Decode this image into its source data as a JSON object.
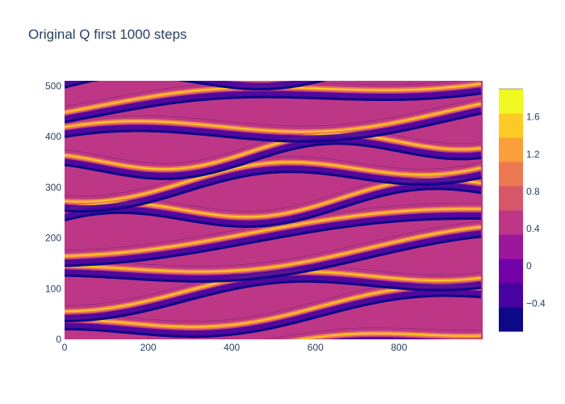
{
  "chart_data": {
    "type": "heatmap",
    "subtype": "contour",
    "title": "Original Q first 1000 steps",
    "xlabel": "",
    "ylabel": "",
    "xlim": [
      0,
      1000
    ],
    "ylim": [
      0,
      510
    ],
    "x_ticks": [
      0,
      200,
      400,
      600,
      800
    ],
    "y_ticks": [
      0,
      100,
      200,
      300,
      400,
      500
    ],
    "colorbar": {
      "range": [
        -0.7,
        1.9
      ],
      "ticks": [
        -0.4,
        0,
        0.4,
        0.8,
        1.2,
        1.6
      ],
      "tick_labels": [
        "−0.4",
        "0",
        "0.4",
        "0.8",
        "1.2",
        "1.6"
      ],
      "colorscale": [
        "#0d0887",
        "#46039f",
        "#7201a8",
        "#9c179e",
        "#bd3786",
        "#d8576b",
        "#ed7953",
        "#fb9f3a",
        "#fdca26",
        "#f0f921"
      ]
    },
    "pattern": "banded stripes of Q values running roughly along x, drifting upward, with thin bright ridges and dark troughs"
  }
}
